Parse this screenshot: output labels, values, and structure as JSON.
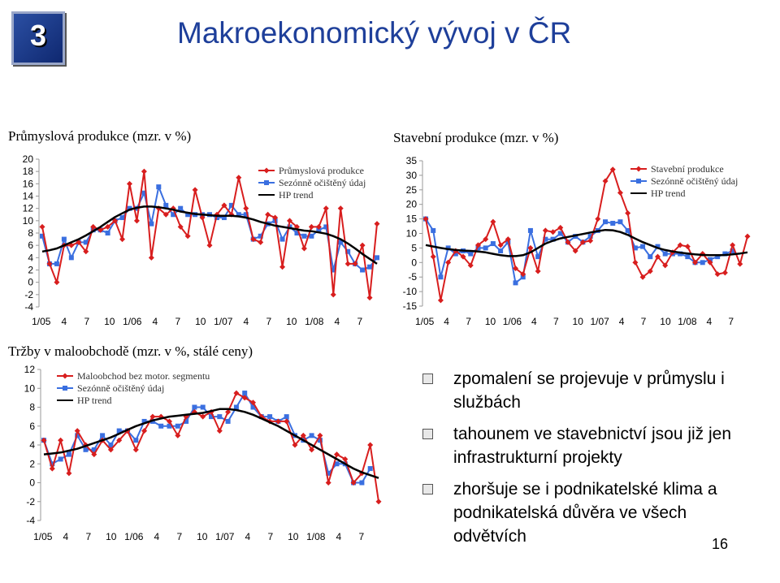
{
  "slide": {
    "number": "3",
    "title": "Makroekonomický vývoj v ČR",
    "page": "16"
  },
  "bullets": [
    "zpomalení se projevuje v průmyslu i službách",
    "tahounem ve stavebnictví jsou již jen infrastrukturní projekty",
    "zhoršuje se i podnikatelské klima a podnikatelská důvěra ve všech odvětvích"
  ],
  "colors": {
    "raw": "#d81e1e",
    "seasonal": "#3a6fe0",
    "trend": "#000000",
    "title": "#1e3f9a"
  },
  "chart_data": [
    {
      "id": "prumysl",
      "type": "line",
      "title": "Průmyslová produkce (mzr. v %)",
      "x_tick_labels": [
        "1/05",
        "4",
        "7",
        "10",
        "1/06",
        "4",
        "7",
        "10",
        "1/07",
        "4",
        "7",
        "10",
        "1/08",
        "4",
        "7"
      ],
      "y_ticks": [
        20,
        18,
        16,
        14,
        12,
        10,
        8,
        6,
        4,
        2,
        0,
        -2,
        -4
      ],
      "ylim": [
        -4,
        20
      ],
      "legend_position": "top-right",
      "series": [
        {
          "name": "Průmyslová produkce",
          "style": "raw",
          "values": [
            9,
            3,
            0,
            6,
            6,
            6.5,
            5,
            9,
            8.5,
            9,
            10,
            7,
            16,
            10,
            18,
            4,
            12,
            11,
            12,
            9,
            7.5,
            15,
            10.5,
            6,
            11,
            12.5,
            11,
            17,
            12,
            7,
            6.5,
            11,
            10.5,
            2.5,
            10,
            9,
            5.5,
            9,
            9,
            12,
            -2,
            12,
            3,
            3,
            6,
            -2.5,
            9.5
          ]
        },
        {
          "name": "Sezónně očištěný údaj",
          "style": "seasonal",
          "values": [
            7.5,
            3,
            3,
            7,
            4,
            6.5,
            6.5,
            8.5,
            8.5,
            8,
            10,
            10.5,
            12,
            12,
            14.5,
            9.5,
            15.5,
            12.5,
            11,
            12,
            11,
            11,
            11,
            11,
            10.5,
            10.5,
            12.5,
            11,
            11,
            7,
            7.5,
            9.5,
            10,
            7,
            9,
            8,
            7.5,
            7.5,
            8.5,
            9,
            2,
            6.5,
            5,
            3,
            2,
            2.5,
            4
          ]
        },
        {
          "name": "HP trend",
          "style": "trend",
          "values": [
            5,
            5.2,
            5.5,
            6,
            6.5,
            7,
            7.6,
            8.3,
            9,
            9.8,
            10.6,
            11.2,
            11.8,
            12.1,
            12.3,
            12.3,
            12.2,
            12,
            11.8,
            11.5,
            11.3,
            11.1,
            11,
            10.9,
            10.8,
            10.8,
            10.8,
            10.7,
            10.5,
            10.2,
            9.8,
            9.5,
            9.2,
            9,
            8.8,
            8.6,
            8.4,
            8.3,
            8.1,
            7.9,
            7.5,
            7,
            6.3,
            5.5,
            4.6,
            3.8,
            3
          ]
        }
      ]
    },
    {
      "id": "stavebni",
      "type": "line",
      "title": "Stavební produkce (mzr. v %)",
      "x_tick_labels": [
        "1/05",
        "4",
        "7",
        "10",
        "1/06",
        "4",
        "7",
        "10",
        "1/07",
        "4",
        "7",
        "10",
        "1/08",
        "4",
        "7"
      ],
      "y_ticks": [
        35,
        30,
        25,
        20,
        15,
        10,
        5,
        0,
        -5,
        -10,
        -15
      ],
      "ylim": [
        -15,
        35
      ],
      "legend_position": "top-right",
      "series": [
        {
          "name": "Stavební produkce",
          "style": "raw",
          "values": [
            15,
            2,
            -13,
            0,
            4,
            2,
            -1,
            6,
            8,
            14,
            6,
            8,
            -2,
            -4,
            5,
            -3,
            11,
            10.5,
            12,
            7,
            4,
            7,
            7.5,
            15,
            28,
            32,
            24,
            17,
            0,
            -5,
            -3,
            2,
            -1,
            3.5,
            6,
            5.5,
            0,
            3,
            0,
            -4,
            -3.5,
            6,
            -0.5,
            9
          ]
        },
        {
          "name": "Sezónně očištěný údaj",
          "style": "seasonal",
          "values": [
            15,
            11,
            -5,
            5,
            3,
            4,
            3,
            5,
            5,
            6.5,
            4,
            7,
            -7,
            -5,
            11,
            2,
            8,
            8,
            10,
            7,
            9,
            7,
            9,
            11,
            14,
            13.5,
            14,
            11,
            5,
            5.5,
            2,
            5.5,
            3,
            3,
            3,
            2,
            0,
            0,
            1,
            2,
            3,
            4
          ]
        },
        {
          "name": "HP trend",
          "style": "trend",
          "values": [
            6,
            5.5,
            5,
            4.6,
            4.3,
            4.1,
            4,
            3.8,
            3.5,
            3,
            2.5,
            2.2,
            2.2,
            2.5,
            3.5,
            5,
            6.5,
            7.5,
            8.3,
            8.8,
            9.3,
            9.8,
            10.3,
            10.8,
            11.2,
            11.1,
            10.5,
            9.5,
            8.2,
            7,
            6,
            5,
            4.3,
            3.8,
            3.4,
            3.1,
            2.8,
            2.6,
            2.5,
            2.5,
            2.6,
            2.8,
            3.1,
            3.5
          ]
        }
      ]
    },
    {
      "id": "trzby",
      "type": "line",
      "title": "Tržby v maloobchodě (mzr. v %, stálé ceny)",
      "x_tick_labels": [
        "1/05",
        "4",
        "7",
        "10",
        "1/06",
        "4",
        "7",
        "10",
        "1/07",
        "4",
        "7",
        "10",
        "1/08",
        "4",
        "7"
      ],
      "y_ticks": [
        12,
        10,
        8,
        6,
        4,
        2,
        0,
        -2,
        -4
      ],
      "ylim": [
        -4,
        12
      ],
      "legend_position": "top-left",
      "series": [
        {
          "name": "Maloobchod bez motor. segmentu",
          "style": "raw",
          "values": [
            4.5,
            1.5,
            4.5,
            1,
            5.5,
            4,
            3,
            4.5,
            3.5,
            4.5,
            5.5,
            3.5,
            5.5,
            7,
            7,
            6.5,
            5,
            7,
            7.5,
            7,
            7.5,
            5.5,
            7.5,
            9.5,
            9,
            8.5,
            7,
            6.5,
            6.5,
            6.5,
            4,
            5,
            3.5,
            5,
            0,
            3,
            2.5,
            0,
            1,
            4,
            -2
          ]
        },
        {
          "name": "Sezónně očištěný údaj",
          "style": "seasonal",
          "values": [
            4.5,
            2,
            2.5,
            3,
            5,
            3.5,
            3.5,
            5,
            4,
            5.5,
            5.5,
            4.5,
            6.5,
            6.5,
            6,
            6,
            6,
            6.5,
            8,
            8,
            7,
            7,
            6.5,
            8,
            9.5,
            8,
            7,
            7,
            6.5,
            7,
            5,
            4.5,
            5,
            4.5,
            1,
            2,
            2,
            0,
            0,
            1.5
          ]
        },
        {
          "name": "HP trend",
          "style": "trend",
          "values": [
            3,
            3.1,
            3.2,
            3.4,
            3.6,
            3.9,
            4.2,
            4.5,
            4.8,
            5.2,
            5.6,
            6,
            6.3,
            6.6,
            6.8,
            7,
            7.1,
            7.2,
            7.3,
            7.4,
            7.6,
            7.8,
            7.8,
            7.7,
            7.5,
            7.2,
            6.8,
            6.4,
            6,
            5.5,
            5,
            4.5,
            4,
            3.5,
            3,
            2.5,
            2,
            1.5,
            1.1,
            0.8,
            0.5
          ]
        }
      ]
    }
  ]
}
